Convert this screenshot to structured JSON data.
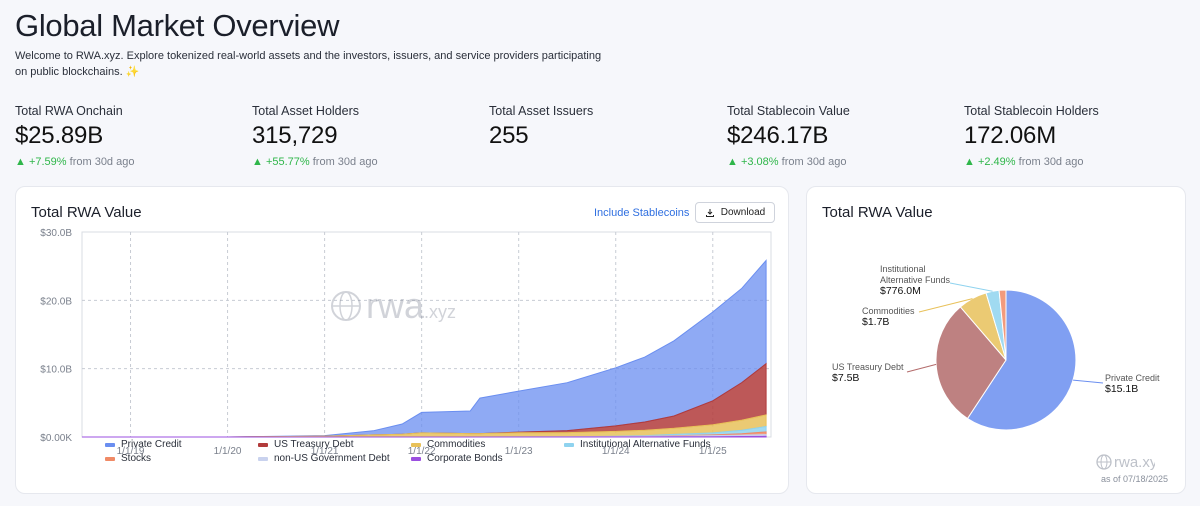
{
  "page": {
    "title": "Global Market Overview",
    "subtitle": "Welcome to RWA.xyz. Explore tokenized real-world assets and the investors, issuers, and service providers participating on public blockchains. ✨"
  },
  "stats": [
    {
      "label": "Total RWA Onchain",
      "value": "$25.89B",
      "change": "+7.59%",
      "suffix": "from 30d ago"
    },
    {
      "label": "Total Asset Holders",
      "value": "315,729",
      "change": "+55.77%",
      "suffix": "from 30d ago"
    },
    {
      "label": "Total Asset Issuers",
      "value": "255",
      "change": "",
      "suffix": ""
    },
    {
      "label": "Total Stablecoin Value",
      "value": "$246.17B",
      "change": "+3.08%",
      "suffix": "from 30d ago"
    },
    {
      "label": "Total Stablecoin Holders",
      "value": "172.06M",
      "change": "+2.49%",
      "suffix": "from 30d ago"
    }
  ],
  "area_card": {
    "title": "Total RWA Value",
    "include_link": "Include Stablecoins",
    "download_label": "Download",
    "watermark": "rwa.xyz"
  },
  "pie_card": {
    "title": "Total RWA Value",
    "watermark": "rwa.xyz",
    "as_of": "as of 07/18/2025"
  },
  "colors": {
    "private_credit": "#6a8ef0",
    "us_treasury": "#b23b3b",
    "commodities": "#e8c15a",
    "institutional": "#8fd3ef",
    "stocks": "#f08a66",
    "non_us_gov": "#c9d2ee",
    "corporate_bonds": "#9b4fe0",
    "up": "#2fb64a"
  },
  "chart_data": [
    {
      "type": "area",
      "title": "Total RWA Value",
      "x_ticks": [
        "1/1/19",
        "1/1/20",
        "1/1/21",
        "1/1/22",
        "1/1/23",
        "1/1/24",
        "1/1/25"
      ],
      "y_ticks": [
        "$0.00K",
        "$10.0B",
        "$20.0B",
        "$30.0B"
      ],
      "ylim": [
        0,
        30
      ],
      "y_unit": "B USD",
      "x": [
        2018.5,
        2019.0,
        2020.0,
        2021.0,
        2021.5,
        2021.8,
        2022.0,
        2022.5,
        2022.6,
        2023.0,
        2023.5,
        2024.0,
        2024.3,
        2024.6,
        2025.0,
        2025.3,
        2025.55
      ],
      "series": [
        {
          "name": "Private Credit",
          "values": [
            0,
            0,
            0,
            0.1,
            0.6,
            1.5,
            3.0,
            3.3,
            5.2,
            6.0,
            7.0,
            8.5,
            9.5,
            11.0,
            13.0,
            13.8,
            15.1
          ]
        },
        {
          "name": "US Treasury Debt",
          "values": [
            0,
            0,
            0,
            0,
            0,
            0,
            0,
            0,
            0,
            0.1,
            0.3,
            0.8,
            1.2,
            1.8,
            3.5,
            5.5,
            7.5
          ]
        },
        {
          "name": "Commodities",
          "values": [
            0,
            0,
            0,
            0.1,
            0.3,
            0.4,
            0.6,
            0.5,
            0.5,
            0.6,
            0.6,
            0.7,
            0.8,
            0.9,
            1.2,
            1.5,
            1.7
          ]
        },
        {
          "name": "Institutional Alternative Funds",
          "values": [
            0,
            0,
            0,
            0,
            0,
            0,
            0,
            0,
            0,
            0,
            0,
            0.05,
            0.1,
            0.2,
            0.3,
            0.5,
            0.78
          ]
        },
        {
          "name": "Stocks",
          "values": [
            0,
            0,
            0,
            0,
            0,
            0,
            0,
            0,
            0,
            0,
            0,
            0,
            0,
            0.05,
            0.1,
            0.2,
            0.4
          ]
        },
        {
          "name": "non-US Government Debt",
          "values": [
            0,
            0,
            0,
            0,
            0,
            0,
            0,
            0,
            0,
            0.02,
            0.04,
            0.06,
            0.08,
            0.1,
            0.15,
            0.2,
            0.25
          ]
        },
        {
          "name": "Corporate Bonds",
          "values": [
            0,
            0,
            0,
            0,
            0,
            0,
            0,
            0,
            0,
            0,
            0,
            0.01,
            0.02,
            0.03,
            0.05,
            0.08,
            0.1
          ]
        }
      ],
      "legend": "bottom"
    },
    {
      "type": "pie",
      "title": "Total RWA Value",
      "slices": [
        {
          "name": "Private Credit",
          "value": 15.1,
          "label": "$15.1B"
        },
        {
          "name": "US Treasury Debt",
          "value": 7.5,
          "label": "$7.5B"
        },
        {
          "name": "Commodities",
          "value": 1.7,
          "label": "$1.7B"
        },
        {
          "name": "Institutional Alternative Funds",
          "value": 0.776,
          "label": "$776.0M"
        },
        {
          "name": "Stocks",
          "value": 0.4,
          "label": ""
        }
      ]
    }
  ]
}
